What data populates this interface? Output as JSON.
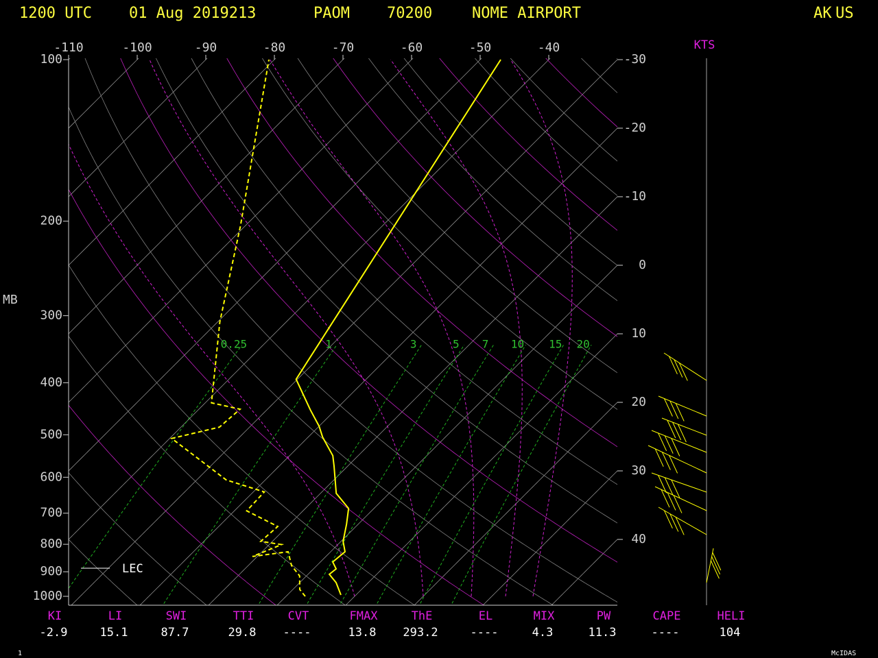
{
  "chart_data": {
    "type": "skewt",
    "header": {
      "time": "1200 UTC",
      "date": "01 Aug 2019213",
      "station": "PAOM",
      "id": "70200",
      "name": "NOME AIRPORT",
      "state": "AK",
      "country": "US"
    },
    "y_label": "MB",
    "wind_label": "KTS",
    "legend_label": "LEC",
    "page_number": "1",
    "software": "McIDAS",
    "log_y": true,
    "ylim": [
      1000,
      100
    ],
    "yticks": [
      100,
      200,
      300,
      400,
      500,
      600,
      700,
      800,
      900,
      1000
    ],
    "top_temperature_ticks": [
      -110,
      -100,
      -90,
      -80,
      -70,
      -60,
      -50,
      -40
    ],
    "right_temperature_ticks": [
      -30,
      -20,
      -10,
      0,
      10,
      20,
      30,
      40
    ],
    "mixing_ratio_labels": [
      0.25,
      1,
      3,
      5,
      7,
      10,
      15,
      20
    ],
    "temperature": {
      "color": "#ffff00",
      "pressure": [
        994,
        943,
        910,
        889,
        863,
        826,
        790,
        734,
        686,
        643,
        572,
        547,
        505,
        482,
        449,
        394,
        100
      ],
      "values": [
        7.8,
        5.3,
        3.1,
        3.3,
        1.8,
        2.1,
        0.3,
        -1.7,
        -3.7,
        -7.7,
        -12,
        -13.7,
        -17.9,
        -20,
        -23.7,
        -30.2,
        -47
      ]
    },
    "dewpoint": {
      "color": "#ffff00",
      "pressure": [
        1000,
        971,
        916,
        876,
        826,
        843,
        801,
        790,
        741,
        693,
        639,
        607,
        508,
        484,
        448,
        436,
        308,
        204,
        100
      ],
      "values": [
        2.8,
        1,
        -1,
        -3.7,
        -6.2,
        -10.7,
        -8.2,
        -11.7,
        -11.4,
        -18.2,
        -18.4,
        -25.7,
        -39.7,
        -34.4,
        -34,
        -39.1,
        -49.7,
        -60.7,
        -80.8
      ]
    },
    "indices": [
      {
        "label": "KI",
        "value": -2.9
      },
      {
        "label": "LI",
        "value": 15.1
      },
      {
        "label": "SWI",
        "value": 87.7
      },
      {
        "label": "TTI",
        "value": 29.8
      },
      {
        "label": "CVT",
        "value": "----"
      },
      {
        "label": "FMAX",
        "value": 13.8
      },
      {
        "label": "ThE",
        "value": 293.2
      },
      {
        "label": "EL",
        "value": "----"
      },
      {
        "label": "MIX",
        "value": 4.3
      },
      {
        "label": "PW",
        "value": 11.3
      },
      {
        "label": "CAPE",
        "value": "----"
      },
      {
        "label": "HELI",
        "value": 104
      }
    ]
  }
}
